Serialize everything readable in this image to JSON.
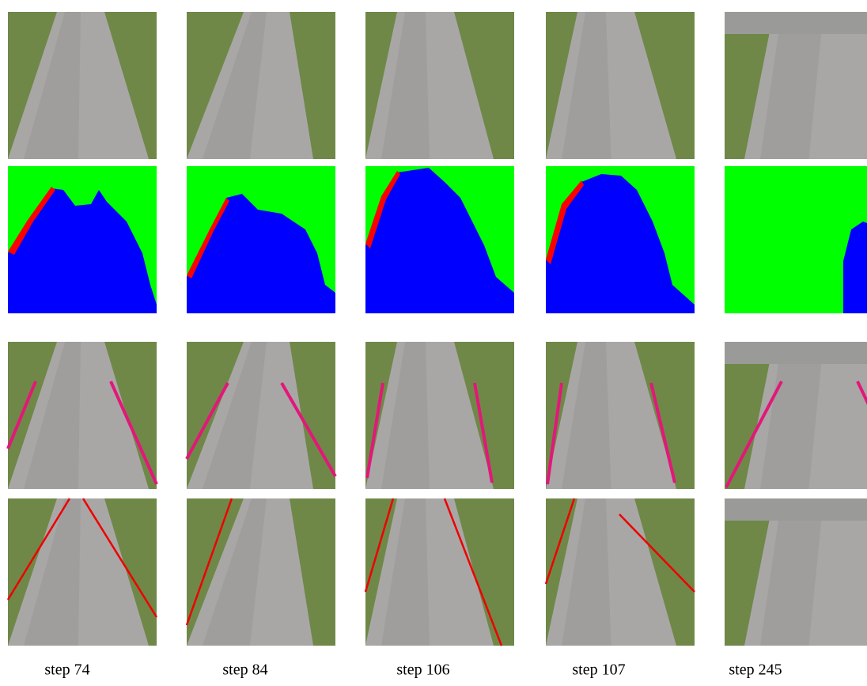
{
  "captions": [
    "step 74",
    "step 84",
    "step 106",
    "step 107",
    "step 245"
  ]
}
